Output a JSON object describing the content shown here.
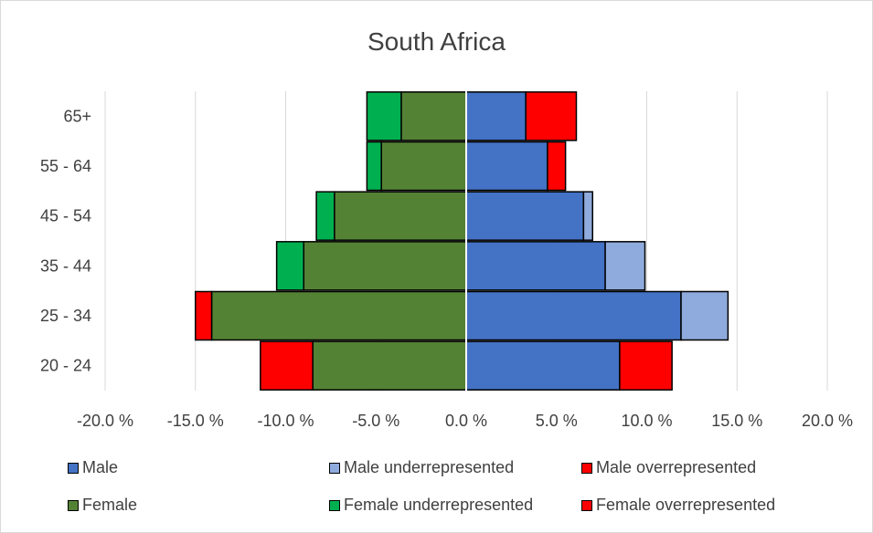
{
  "chart_data": {
    "type": "bar",
    "title": "South Africa",
    "orientation": "horizontal-stacked-pyramid",
    "categories": [
      "20 - 24",
      "25 - 34",
      "35 - 44",
      "45 - 54",
      "55 - 64",
      "65+"
    ],
    "xlim": [
      -20,
      20
    ],
    "x_ticks": [
      -20,
      -15,
      -10,
      -5,
      0,
      5,
      10,
      15,
      20
    ],
    "x_tick_labels": [
      "-20.0 %",
      "-15.0 %",
      "-10.0 %",
      "-5.0 %",
      "0.0 %",
      "5.0 %",
      "10.0 %",
      "15.0 %",
      "20.0 %"
    ],
    "grid": "vertical",
    "legend_position": "bottom",
    "series": [
      {
        "name": "Male",
        "side": "right",
        "color": "#4472c4",
        "values": [
          8.5,
          11.9,
          7.7,
          6.5,
          4.5,
          3.3
        ]
      },
      {
        "name": "Male underrepresented",
        "side": "right",
        "color": "#8faadc",
        "values": [
          0,
          2.6,
          2.2,
          0.5,
          0,
          0
        ]
      },
      {
        "name": "Male overrepresented",
        "side": "right",
        "color": "#ff0000",
        "values": [
          2.9,
          0,
          0,
          0,
          1.0,
          2.8
        ]
      },
      {
        "name": "Female",
        "side": "left",
        "color": "#548235",
        "values": [
          8.5,
          14.1,
          9.0,
          7.3,
          4.7,
          3.6
        ]
      },
      {
        "name": "Female underrepresented",
        "side": "left",
        "color": "#00b050",
        "values": [
          0,
          0,
          1.5,
          1.0,
          0.8,
          1.9
        ]
      },
      {
        "name": "Female overrepresented",
        "side": "left",
        "color": "#ff0000",
        "values": [
          2.9,
          0.9,
          0,
          0,
          0,
          0
        ]
      }
    ]
  }
}
